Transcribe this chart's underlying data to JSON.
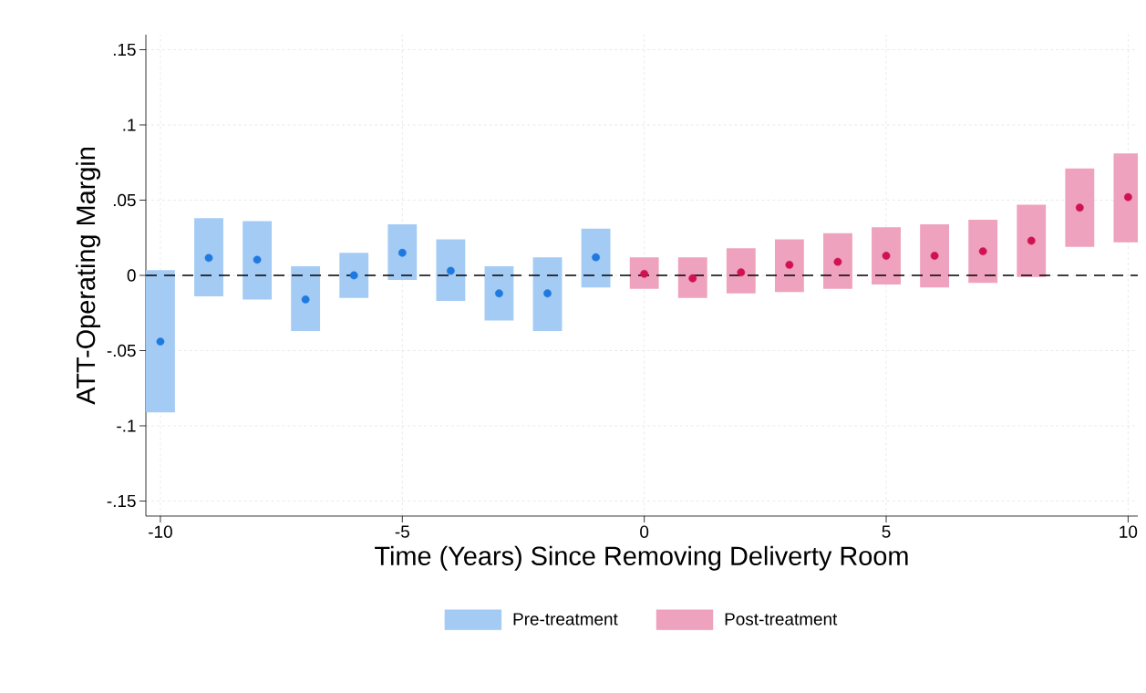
{
  "chart_data": {
    "type": "bar",
    "xlabel": "Time (Years) Since Removing Deliverty Room",
    "ylabel": "ATT-Operating Margin",
    "xlim": [
      -10.3,
      10.2
    ],
    "ylim": [
      -0.16,
      0.16
    ],
    "xticks": [
      -10,
      -5,
      0,
      5,
      10
    ],
    "yticks": [
      {
        "value": -0.15,
        "label": "-.15"
      },
      {
        "value": -0.1,
        "label": "-.1"
      },
      {
        "value": -0.05,
        "label": "-.05"
      },
      {
        "value": 0,
        "label": "0"
      },
      {
        "value": 0.05,
        "label": ".05"
      },
      {
        "value": 0.1,
        "label": ".1"
      },
      {
        "value": 0.15,
        "label": ".15"
      }
    ],
    "grid": true,
    "legend": "bottom",
    "marker": "circle",
    "ref_lines": [
      {
        "axis": "y",
        "value": 0,
        "color": "#000000",
        "line_style": "dashed"
      }
    ],
    "series": [
      {
        "name": "Pre-treatment",
        "color": "#a4cbf4",
        "x": [
          -10,
          -9,
          -8,
          -7,
          -6,
          -5,
          -4,
          -3,
          -2,
          -1
        ],
        "base": [
          -0.091,
          -0.014,
          -0.016,
          -0.037,
          -0.015,
          -0.003,
          -0.017,
          -0.03,
          -0.037,
          -0.008
        ],
        "values": [
          0.0945,
          0.052,
          0.052,
          0.043,
          0.03,
          0.037,
          0.041,
          0.036,
          0.049,
          0.039
        ]
      },
      {
        "name": "Post-treatment",
        "color": "#eea2bd",
        "x": [
          0,
          1,
          2,
          3,
          4,
          5,
          6,
          7,
          8,
          9,
          10
        ],
        "base": [
          -0.009,
          -0.015,
          -0.012,
          -0.011,
          -0.009,
          -0.006,
          -0.008,
          -0.005,
          -0.001,
          0.019,
          0.022
        ],
        "values": [
          0.021,
          0.027,
          0.03,
          0.035,
          0.037,
          0.038,
          0.042,
          0.042,
          0.048,
          0.052,
          0.059
        ]
      },
      {
        "type": "scatter",
        "color": "#1f7ae0",
        "x": [
          -10,
          -9,
          -8,
          -7,
          -6,
          -5,
          -4,
          -3,
          -2,
          -1
        ],
        "values": [
          -0.044,
          0.0116,
          0.0104,
          -0.016,
          0,
          0.015,
          0.003,
          -0.012,
          -0.012,
          0.012
        ]
      },
      {
        "type": "scatter",
        "color": "#d01350",
        "x": [
          0,
          1,
          2,
          3,
          4,
          5,
          6,
          7,
          8,
          9,
          10
        ],
        "values": [
          0.001,
          -0.002,
          0.002,
          0.007,
          0.009,
          0.013,
          0.013,
          0.016,
          0.023,
          0.045,
          0.052
        ]
      }
    ]
  }
}
